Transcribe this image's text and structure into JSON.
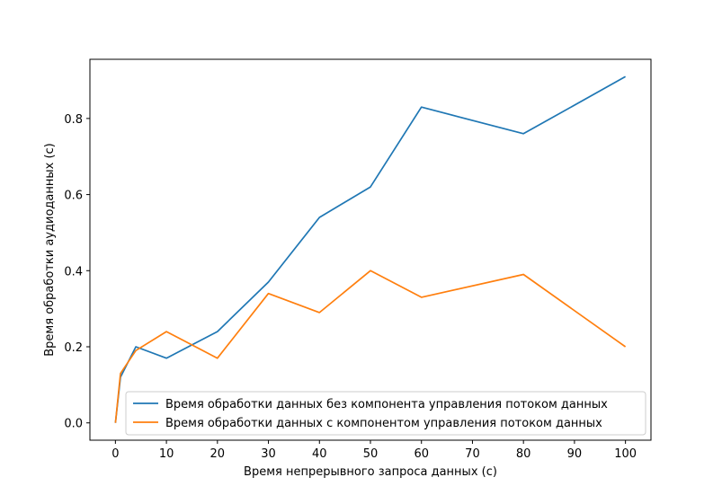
{
  "colors": {
    "series_1": "#1f77b4",
    "series_2": "#ff7f0e",
    "axes": "#000000",
    "legend_border": "#cccccc"
  },
  "chart_data": {
    "type": "line",
    "title": "",
    "xlabel": "Время непрерывного запроса данных (с)",
    "ylabel": "Время обработки аудиоданных (с)",
    "xlim": [
      -5,
      105
    ],
    "ylim": [
      -0.0455,
      0.9555
    ],
    "xticks": [
      0,
      10,
      20,
      30,
      40,
      50,
      60,
      70,
      80,
      90,
      100
    ],
    "xtick_labels": [
      "0",
      "10",
      "20",
      "30",
      "40",
      "50",
      "60",
      "70",
      "80",
      "90",
      "100"
    ],
    "yticks": [
      0.0,
      0.2,
      0.4,
      0.6,
      0.8
    ],
    "ytick_labels": [
      "0.0",
      "0.2",
      "0.4",
      "0.6",
      "0.8"
    ],
    "grid": false,
    "legend_position": "lower-right",
    "x": [
      0,
      1,
      4,
      10,
      20,
      30,
      40,
      50,
      60,
      80,
      100
    ],
    "series": [
      {
        "name": "Время обработки данных без компонента управления потоком данных",
        "values": [
          0.0,
          0.12,
          0.2,
          0.17,
          0.24,
          0.37,
          0.54,
          0.62,
          0.83,
          0.76,
          0.91
        ]
      },
      {
        "name": "Время обработки данных с компонентом управления потоком данных",
        "values": [
          0.0,
          0.13,
          0.19,
          0.24,
          0.17,
          0.34,
          0.29,
          0.4,
          0.33,
          0.39,
          0.2
        ]
      }
    ]
  }
}
